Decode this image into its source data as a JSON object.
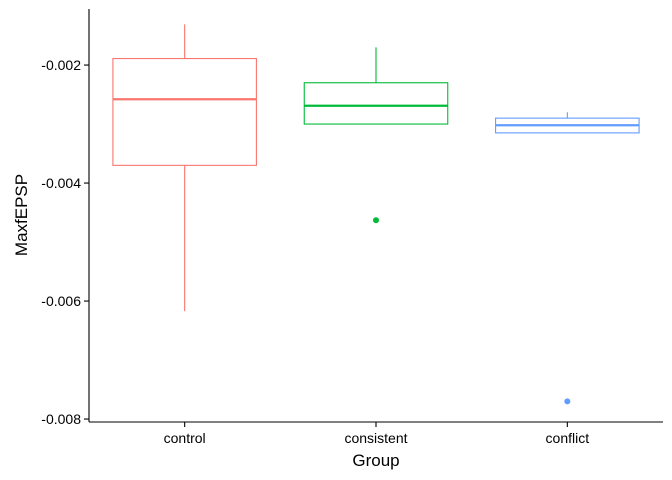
{
  "chart_data": {
    "type": "boxplot",
    "xlabel": "Group",
    "ylabel": "MaxfEPSP",
    "ylim": [
      -0.00805,
      -0.00105
    ],
    "yticks": [
      -0.002,
      -0.004,
      -0.006,
      -0.008
    ],
    "ytick_labels": [
      "-0.002",
      "-0.004",
      "-0.006",
      "-0.008"
    ],
    "categories": [
      "control",
      "consistent",
      "conflict"
    ],
    "boxes": [
      {
        "group": "control",
        "color": "#F8766D",
        "whisker_low": -0.00617,
        "q1": -0.0037,
        "median": -0.00258,
        "q3": -0.00189,
        "whisker_high": -0.00131,
        "outliers": []
      },
      {
        "group": "consistent",
        "color": "#00BA38",
        "whisker_low": -0.003,
        "q1": -0.003,
        "median": -0.00269,
        "q3": -0.0023,
        "whisker_high": -0.0017,
        "outliers": [
          -0.00463
        ]
      },
      {
        "group": "conflict",
        "color": "#619CFF",
        "whisker_low": -0.00315,
        "q1": -0.00315,
        "median": -0.00302,
        "q3": -0.0029,
        "whisker_high": -0.0028,
        "outliers": [
          -0.0077
        ]
      }
    ],
    "grid": false,
    "legend": "none"
  }
}
